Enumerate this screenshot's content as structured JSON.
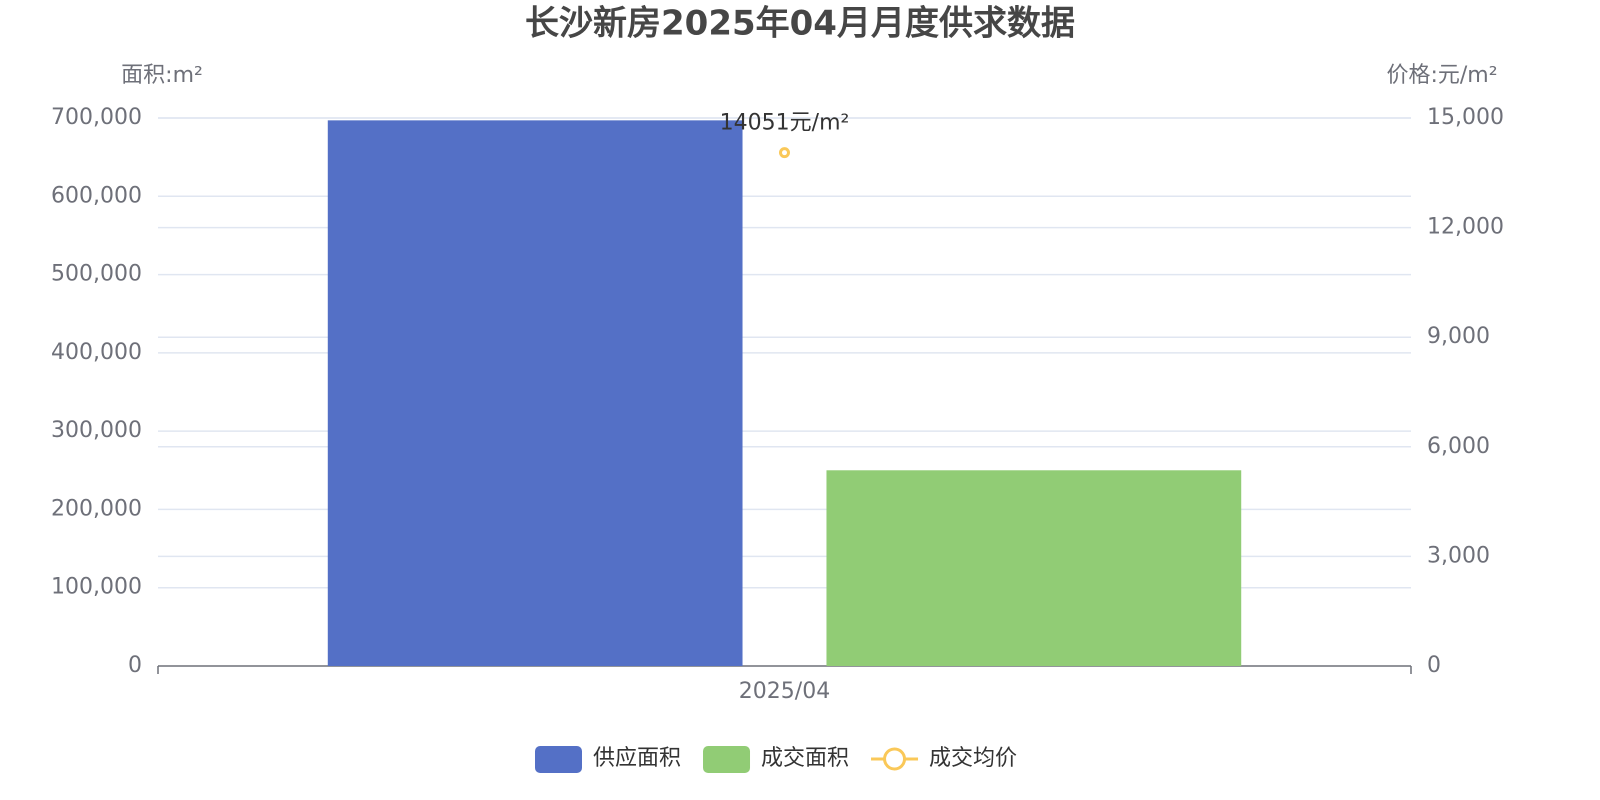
{
  "chart_data": {
    "type": "bar",
    "title": "长沙新房2025年04月月度供求数据",
    "y_axis_label": "面积:m²",
    "y2_axis_label": "价格:元/m²",
    "categories": [
      "2025/04"
    ],
    "ylim": [
      0,
      700000
    ],
    "yticks": [
      0,
      {
        "value": 100000,
        "label": "100,000"
      },
      {
        "value": 200000,
        "label": "200,000"
      },
      {
        "value": 300000,
        "label": "300,000"
      },
      {
        "value": 400000,
        "label": "400,000"
      },
      {
        "value": 500000,
        "label": "500,000"
      },
      {
        "value": 600000,
        "label": "600,000"
      },
      {
        "value": 700000,
        "label": "700,000"
      }
    ],
    "y2lim": [
      0,
      15000
    ],
    "y2ticks": [
      0,
      {
        "value": 3000,
        "label": "3,000"
      },
      {
        "value": 6000,
        "label": "6,000"
      },
      {
        "value": 9000,
        "label": "9,000"
      },
      {
        "value": 12000,
        "label": "12,000"
      },
      {
        "value": 15000,
        "label": "15,000"
      }
    ],
    "grid": true,
    "legend": "bottom",
    "series": [
      {
        "name": "供应面积",
        "type": "bar",
        "color": "#5470c6",
        "values": [
          697000
        ]
      },
      {
        "name": "成交面积",
        "type": "bar",
        "color": "#91cc75",
        "values": [
          250000
        ]
      },
      {
        "name": "成交均价",
        "type": "line",
        "axis": "y2",
        "color": "#fac858",
        "values": [
          14051
        ],
        "value_labels": [
          "14051元/m²"
        ]
      }
    ]
  }
}
